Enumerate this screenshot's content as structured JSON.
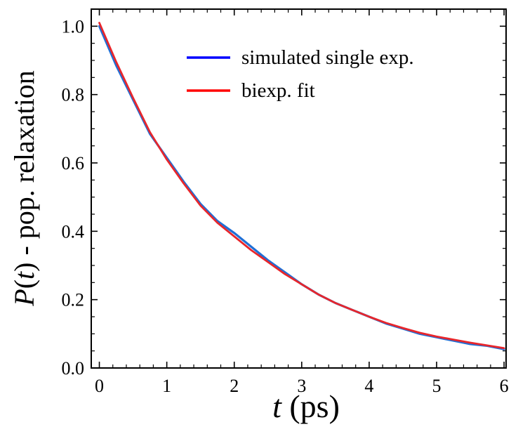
{
  "chart_data": {
    "type": "line",
    "xlabel_var": "t",
    "xlabel_unit": " (ps)",
    "ylabel_var": "P",
    "ylabel_open": "(",
    "ylabel_var2": "t",
    "ylabel_rest": ") - pop. relaxation",
    "xlim": [
      -0.12,
      6.03
    ],
    "ylim": [
      0.0,
      1.05
    ],
    "xticks": [
      0,
      1,
      2,
      3,
      4,
      5,
      6
    ],
    "xtick_labels": [
      "0",
      "1",
      "2",
      "3",
      "4",
      "5",
      "6"
    ],
    "yticks": [
      0.0,
      0.2,
      0.4,
      0.6,
      0.8,
      1.0
    ],
    "ytick_labels": [
      "0.0",
      "0.2",
      "0.4",
      "0.6",
      "0.8",
      "1.0"
    ],
    "grid": false,
    "legend_position": "top-right",
    "x": [
      0.0,
      0.25,
      0.5,
      0.75,
      1.0,
      1.25,
      1.5,
      1.75,
      2.0,
      2.25,
      2.5,
      2.75,
      3.0,
      3.25,
      3.5,
      3.75,
      4.0,
      4.25,
      4.5,
      4.75,
      5.0,
      5.25,
      5.5,
      5.75,
      6.0
    ],
    "series": [
      {
        "name": "simulated single exp.",
        "color": "#1f6fd6",
        "values": [
          1.0,
          0.885,
          0.785,
          0.685,
          0.615,
          0.545,
          0.48,
          0.43,
          0.395,
          0.355,
          0.315,
          0.28,
          0.245,
          0.215,
          0.19,
          0.17,
          0.15,
          0.13,
          0.115,
          0.1,
          0.09,
          0.08,
          0.07,
          0.065,
          0.055
        ]
      },
      {
        "name": "biexp. fit",
        "color": "#e8262b",
        "values": [
          1.01,
          0.895,
          0.79,
          0.69,
          0.61,
          0.54,
          0.475,
          0.425,
          0.385,
          0.345,
          0.31,
          0.275,
          0.245,
          0.215,
          0.19,
          0.17,
          0.15,
          0.132,
          0.117,
          0.103,
          0.092,
          0.083,
          0.074,
          0.066,
          0.058
        ]
      }
    ],
    "legend_entries": [
      {
        "label": "simulated single exp.",
        "color": "#0000ff"
      },
      {
        "label": "biexp. fit",
        "color": "#ff0000"
      }
    ]
  }
}
